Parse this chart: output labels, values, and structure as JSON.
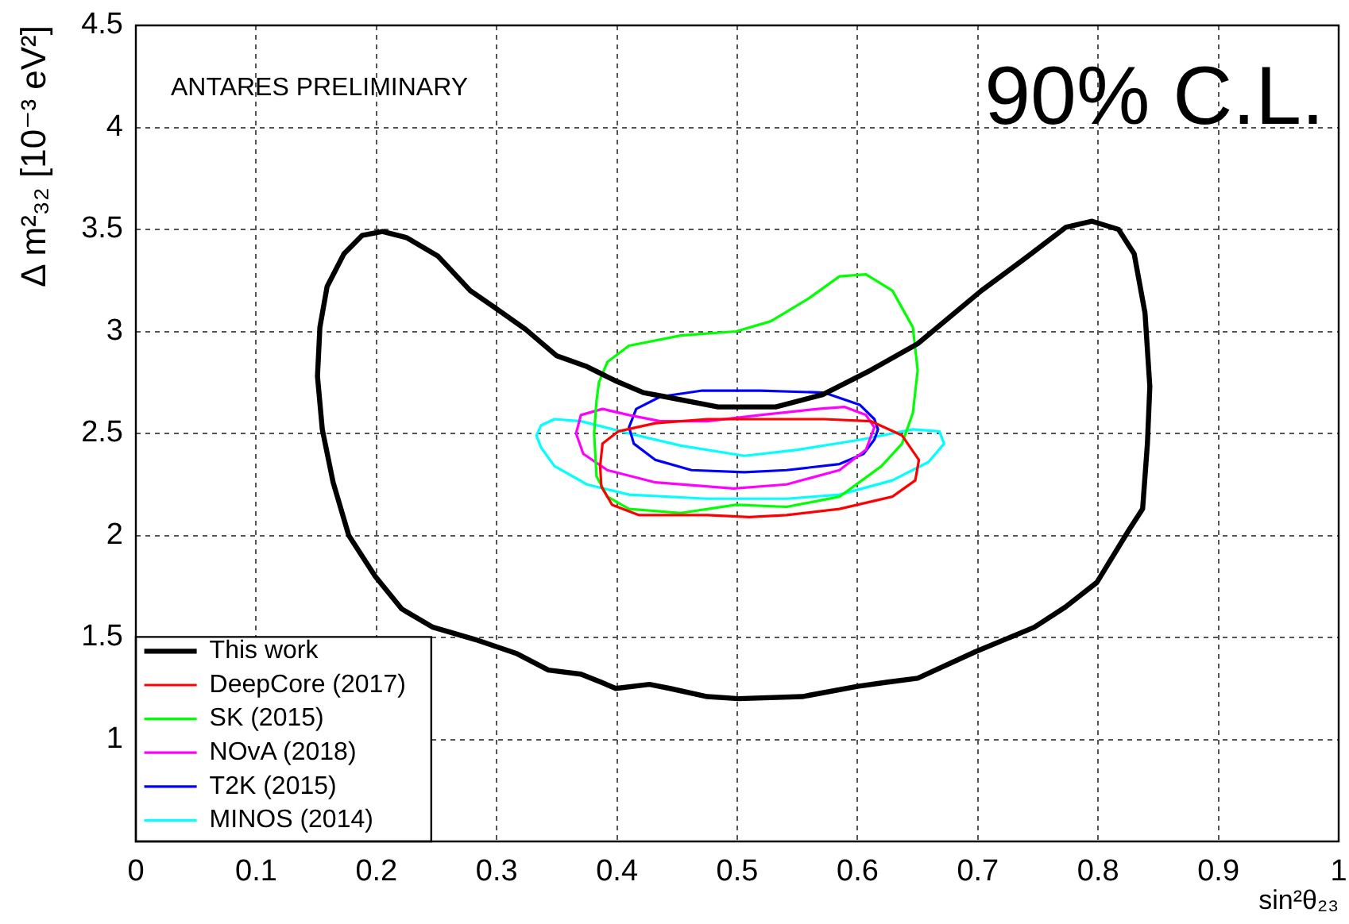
{
  "chart_data": {
    "type": "line",
    "xlabel": "sin²θ₂₃",
    "ylabel": "Δ m²₃₂ [10⁻³ eV²]",
    "annotations": [
      "ANTARES PRELIMINARY",
      "90% C.L."
    ],
    "xlim": [
      0,
      1
    ],
    "ylim": [
      0.5,
      4.5
    ],
    "xticks": [
      0,
      0.1,
      0.2,
      0.3,
      0.4,
      0.5,
      0.6,
      0.7,
      0.8,
      0.9,
      1
    ],
    "yticks": [
      1,
      1.5,
      2,
      2.5,
      3,
      3.5,
      4,
      4.5
    ],
    "grid": true,
    "legend": "bottom left",
    "marker": "none",
    "series": [
      {
        "name": "This work",
        "color": "#000000",
        "x": [
          0.151,
          0.153,
          0.159,
          0.173,
          0.188,
          0.205,
          0.225,
          0.251,
          0.278,
          0.3,
          0.324,
          0.35,
          0.374,
          0.398,
          0.422,
          0.44,
          0.466,
          0.484,
          0.532,
          0.571,
          0.611,
          0.65,
          0.703,
          0.742,
          0.773,
          0.795,
          0.817,
          0.83,
          0.839,
          0.843,
          null,
          0.843,
          0.841,
          0.837,
          0.826,
          0.799,
          0.773,
          0.747,
          0.698,
          0.65,
          0.624,
          0.6,
          0.554,
          0.501,
          0.475,
          0.444,
          0.427,
          0.399,
          0.387,
          0.37,
          0.343,
          0.317,
          0.282,
          0.247,
          0.221,
          0.199,
          0.177,
          0.164,
          0.155,
          0.151
        ],
        "values": [
          2.78,
          3.02,
          3.22,
          3.38,
          3.47,
          3.49,
          3.46,
          3.37,
          3.2,
          3.11,
          3.01,
          2.88,
          2.83,
          2.76,
          2.7,
          2.68,
          2.65,
          2.63,
          2.63,
          2.69,
          2.81,
          2.94,
          3.2,
          3.37,
          3.51,
          3.54,
          3.5,
          3.38,
          3.09,
          2.73,
          null,
          2.73,
          2.45,
          2.13,
          2.03,
          1.77,
          1.65,
          1.55,
          1.43,
          1.3,
          1.28,
          1.26,
          1.21,
          1.2,
          1.21,
          1.25,
          1.27,
          1.25,
          1.28,
          1.32,
          1.34,
          1.42,
          1.49,
          1.55,
          1.64,
          1.8,
          2.0,
          2.26,
          2.52,
          2.78
        ]
      },
      {
        "name": "DeepCore (2017)",
        "color": "#ff0000",
        "x": [
          0.386,
          0.388,
          0.401,
          0.432,
          0.475,
          0.519,
          0.572,
          0.611,
          0.637,
          0.651,
          null,
          0.651,
          0.648,
          0.629,
          0.585,
          0.541,
          0.51,
          0.475,
          0.418,
          0.396,
          0.387,
          0.386
        ],
        "values": [
          2.34,
          2.45,
          2.51,
          2.55,
          2.57,
          2.57,
          2.57,
          2.56,
          2.49,
          2.37,
          null,
          2.37,
          2.27,
          2.19,
          2.13,
          2.1,
          2.09,
          2.1,
          2.1,
          2.15,
          2.24,
          2.34
        ]
      },
      {
        "name": "SK (2015)",
        "color": "#00ff00",
        "x": [
          0.381,
          0.383,
          0.385,
          0.392,
          0.41,
          0.453,
          0.499,
          0.528,
          0.559,
          0.585,
          0.607,
          0.629,
          0.646,
          0.65,
          null,
          0.65,
          0.646,
          0.637,
          0.62,
          0.585,
          0.541,
          0.499,
          0.453,
          0.41,
          0.392,
          0.383,
          0.381
        ],
        "values": [
          2.5,
          2.66,
          2.75,
          2.85,
          2.93,
          2.98,
          3.0,
          3.05,
          3.16,
          3.27,
          3.28,
          3.2,
          3.02,
          2.81,
          null,
          2.81,
          2.6,
          2.45,
          2.34,
          2.19,
          2.14,
          2.15,
          2.11,
          2.13,
          2.19,
          2.29,
          2.5
        ]
      },
      {
        "name": "NOvA (2018)",
        "color": "#ff00ff",
        "x": [
          0.366,
          0.37,
          0.388,
          0.41,
          0.436,
          0.475,
          0.519,
          0.567,
          0.589,
          0.607,
          0.614,
          null,
          0.614,
          0.607,
          0.585,
          0.541,
          0.497,
          0.432,
          0.392,
          0.372,
          0.366
        ],
        "values": [
          2.5,
          2.59,
          2.62,
          2.59,
          2.56,
          2.56,
          2.59,
          2.62,
          2.63,
          2.59,
          2.53,
          null,
          2.53,
          2.42,
          2.32,
          2.25,
          2.23,
          2.26,
          2.32,
          2.4,
          2.5
        ]
      },
      {
        "name": "T2K (2015)",
        "color": "#0000ff",
        "x": [
          0.41,
          0.416,
          0.436,
          0.471,
          0.519,
          0.572,
          0.602,
          0.614,
          0.617,
          null,
          0.617,
          0.614,
          0.605,
          0.585,
          0.541,
          0.506,
          0.462,
          0.432,
          0.414,
          0.41
        ],
        "values": [
          2.53,
          2.62,
          2.68,
          2.71,
          2.71,
          2.7,
          2.64,
          2.57,
          2.52,
          null,
          2.52,
          2.47,
          2.4,
          2.35,
          2.32,
          2.31,
          2.32,
          2.37,
          2.45,
          2.53
        ]
      },
      {
        "name": "MINOS (2014)",
        "color": "#00ffff",
        "x": [
          0.333,
          0.337,
          0.348,
          0.37,
          0.41,
          0.453,
          0.506,
          0.55,
          0.603,
          0.646,
          0.668,
          0.672,
          null,
          0.672,
          0.659,
          0.629,
          0.585,
          0.541,
          0.475,
          0.41,
          0.375,
          0.348,
          0.337,
          0.333
        ],
        "values": [
          2.49,
          2.54,
          2.57,
          2.56,
          2.5,
          2.44,
          2.39,
          2.42,
          2.47,
          2.52,
          2.51,
          2.45,
          null,
          2.45,
          2.36,
          2.27,
          2.2,
          2.18,
          2.18,
          2.2,
          2.25,
          2.34,
          2.43,
          2.49
        ]
      }
    ]
  }
}
